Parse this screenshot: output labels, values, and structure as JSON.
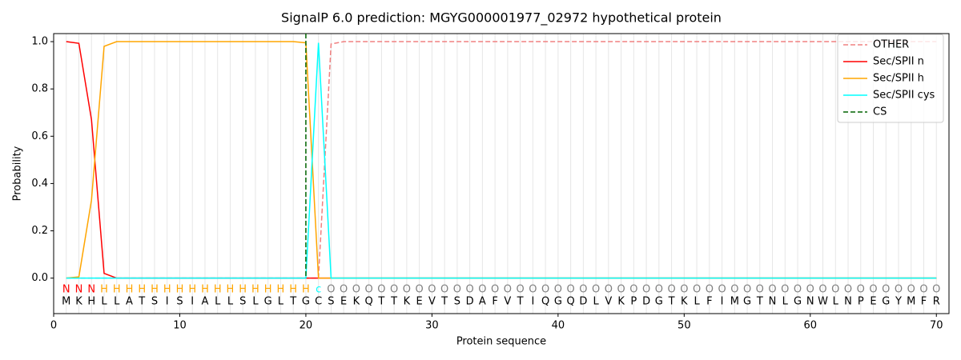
{
  "chart_data": {
    "type": "line",
    "title": "SignalP 6.0 prediction: MGYG000001977_02972 hypothetical protein",
    "xlabel": "Protein sequence",
    "ylabel": "Probability",
    "x": [
      1,
      2,
      3,
      4,
      5,
      6,
      7,
      8,
      9,
      10,
      11,
      12,
      13,
      14,
      15,
      16,
      17,
      18,
      19,
      20,
      21,
      22,
      23,
      24,
      25,
      26,
      27,
      28,
      29,
      30,
      31,
      32,
      33,
      34,
      35,
      36,
      37,
      38,
      39,
      40,
      41,
      42,
      43,
      44,
      45,
      46,
      47,
      48,
      49,
      50,
      51,
      52,
      53,
      54,
      55,
      56,
      57,
      58,
      59,
      60,
      61,
      62,
      63,
      64,
      65,
      66,
      67,
      68,
      69,
      70
    ],
    "sequence": [
      "M",
      "K",
      "H",
      "L",
      "L",
      "A",
      "T",
      "S",
      "I",
      "S",
      "I",
      "A",
      "L",
      "L",
      "S",
      "L",
      "G",
      "L",
      "T",
      "G",
      "C",
      "S",
      "E",
      "K",
      "Q",
      "T",
      "T",
      "K",
      "E",
      "V",
      "T",
      "S",
      "D",
      "A",
      "F",
      "V",
      "T",
      "I",
      "Q",
      "G",
      "Q",
      "D",
      "L",
      "V",
      "K",
      "P",
      "D",
      "G",
      "T",
      "K",
      "L",
      "F",
      "I",
      "M",
      "G",
      "T",
      "N",
      "L",
      "G",
      "N",
      "W",
      "L",
      "N",
      "P",
      "E",
      "G",
      "Y",
      "M",
      "F",
      "R"
    ],
    "labels": [
      "N",
      "N",
      "N",
      "H",
      "H",
      "H",
      "H",
      "H",
      "H",
      "H",
      "H",
      "H",
      "H",
      "H",
      "H",
      "H",
      "H",
      "H",
      "H",
      "H",
      "c",
      "O",
      "O",
      "O",
      "O",
      "O",
      "O",
      "O",
      "O",
      "O",
      "O",
      "O",
      "O",
      "O",
      "O",
      "O",
      "O",
      "O",
      "O",
      "O",
      "O",
      "O",
      "O",
      "O",
      "O",
      "O",
      "O",
      "O",
      "O",
      "O",
      "O",
      "O",
      "O",
      "O",
      "O",
      "O",
      "O",
      "O",
      "O",
      "O",
      "O",
      "O",
      "O",
      "O",
      "O",
      "O",
      "O",
      "O",
      "O",
      "O"
    ],
    "label_colors": {
      "N": "red",
      "H": "orange",
      "c": "cyan",
      "O": "grey"
    },
    "series": [
      {
        "name": "OTHER",
        "color": "#f08080",
        "dashed": true,
        "values": [
          0,
          0,
          0,
          0,
          0,
          0,
          0,
          0,
          0,
          0,
          0,
          0,
          0,
          0,
          0,
          0,
          0,
          0,
          0,
          0,
          0,
          0.99,
          1,
          1,
          1,
          1,
          1,
          1,
          1,
          1,
          1,
          1,
          1,
          1,
          1,
          1,
          1,
          1,
          1,
          1,
          1,
          1,
          1,
          1,
          1,
          1,
          1,
          1,
          1,
          1,
          1,
          1,
          1,
          1,
          1,
          1,
          1,
          1,
          1,
          1,
          1,
          1,
          1,
          1,
          1,
          1,
          1,
          1,
          1,
          1
        ]
      },
      {
        "name": "Sec/SPII n",
        "color": "red",
        "dashed": false,
        "values": [
          1,
          0.993,
          0.67,
          0.02,
          0,
          0,
          0,
          0,
          0,
          0,
          0,
          0,
          0,
          0,
          0,
          0,
          0,
          0,
          0,
          0,
          0,
          0,
          0,
          0,
          0,
          0,
          0,
          0,
          0,
          0,
          0,
          0,
          0,
          0,
          0,
          0,
          0,
          0,
          0,
          0,
          0,
          0,
          0,
          0,
          0,
          0,
          0,
          0,
          0,
          0,
          0,
          0,
          0,
          0,
          0,
          0,
          0,
          0,
          0,
          0,
          0,
          0,
          0,
          0,
          0,
          0,
          0,
          0,
          0,
          0
        ]
      },
      {
        "name": "Sec/SPII h",
        "color": "orange",
        "dashed": false,
        "values": [
          0,
          0.005,
          0.33,
          0.98,
          1,
          1,
          1,
          1,
          1,
          1,
          1,
          1,
          1,
          1,
          1,
          1,
          1,
          1,
          1,
          0.995,
          0,
          0,
          0,
          0,
          0,
          0,
          0,
          0,
          0,
          0,
          0,
          0,
          0,
          0,
          0,
          0,
          0,
          0,
          0,
          0,
          0,
          0,
          0,
          0,
          0,
          0,
          0,
          0,
          0,
          0,
          0,
          0,
          0,
          0,
          0,
          0,
          0,
          0,
          0,
          0,
          0,
          0,
          0,
          0,
          0,
          0,
          0,
          0,
          0,
          0
        ]
      },
      {
        "name": "Sec/SPII cys",
        "color": "cyan",
        "dashed": false,
        "values": [
          0,
          0,
          0,
          0,
          0,
          0,
          0,
          0,
          0,
          0,
          0,
          0,
          0,
          0,
          0,
          0,
          0,
          0,
          0,
          0,
          0.995,
          0,
          0,
          0,
          0,
          0,
          0,
          0,
          0,
          0,
          0,
          0,
          0,
          0,
          0,
          0,
          0,
          0,
          0,
          0,
          0,
          0,
          0,
          0,
          0,
          0,
          0,
          0,
          0,
          0,
          0,
          0,
          0,
          0,
          0,
          0,
          0,
          0,
          0,
          0,
          0,
          0,
          0,
          0,
          0,
          0,
          0,
          0,
          0,
          0
        ]
      }
    ],
    "cs": {
      "name": "CS",
      "color": "darkgreen",
      "x": 20
    },
    "xlim": [
      0,
      71
    ],
    "ylim": [
      -0.15,
      1.034
    ],
    "xticks": [
      0,
      10,
      20,
      30,
      40,
      50,
      60,
      70
    ],
    "yticks": [
      {
        "value": 0,
        "label": "0.0"
      },
      {
        "value": 0.2,
        "label": "0.2"
      },
      {
        "value": 0.4,
        "label": "0.4"
      },
      {
        "value": 0.6,
        "label": "0.6"
      },
      {
        "value": 0.8,
        "label": "0.8"
      },
      {
        "value": 1,
        "label": "1.0"
      }
    ],
    "legend": "upper right"
  }
}
